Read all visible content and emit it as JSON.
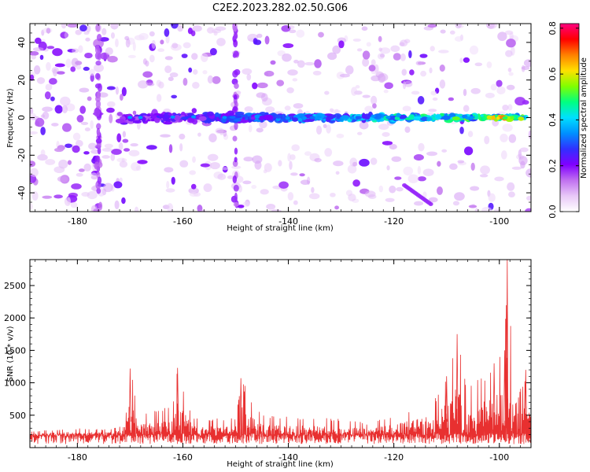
{
  "title": "C2E2.2023.282.02.50.G06",
  "chart_data": [
    {
      "type": "heatmap",
      "xlabel": "Height of straight line (km)",
      "ylabel": "Frequency (Hz)",
      "xlim": [
        -189,
        -94
      ],
      "ylim": [
        -50,
        50
      ],
      "x_ticks": [
        -180,
        -160,
        -140,
        -120,
        -100
      ],
      "y_ticks": [
        -40,
        -20,
        0,
        20,
        40
      ],
      "colorbar": {
        "label": "Normalized spectral amplitude",
        "range": [
          0,
          0.82
        ],
        "ticks": [
          0.0,
          0.2,
          0.4,
          0.6,
          0.8
        ],
        "tick_labels": [
          "0.0",
          "0.2",
          "0.4",
          "0.6",
          "0.8"
        ],
        "colormap": [
          "#ffffff",
          "#e8c8f8",
          "#c070f0",
          "#8000ff",
          "#3030ff",
          "#0090ff",
          "#00e0ff",
          "#00ff80",
          "#80ff00",
          "#ffe000",
          "#ff8000",
          "#ff0000",
          "#ff0080"
        ]
      },
      "description_signal": {
        "center_frequency_hz": 0,
        "signal_start_km": -172,
        "signal_end_km": -95,
        "peak_amplitude": 0.8,
        "peak_height_km": -100
      }
    },
    {
      "type": "line",
      "xlabel": "Height of straight line (km)",
      "ylabel": "SNR (10 * v/v)",
      "xlim": [
        -189,
        -94
      ],
      "ylim": [
        0,
        2900
      ],
      "x_ticks": [
        -180,
        -160,
        -140,
        -120,
        -100
      ],
      "y_ticks": [
        500,
        1000,
        1500,
        2000,
        2500
      ],
      "color": "#e83030",
      "key_points": [
        {
          "x": -189,
          "y": 250
        },
        {
          "x": -180,
          "y": 300
        },
        {
          "x": -175,
          "y": 280
        },
        {
          "x": -171,
          "y": 340
        },
        {
          "x": -170,
          "y": 1220
        },
        {
          "x": -168,
          "y": 500
        },
        {
          "x": -162,
          "y": 650
        },
        {
          "x": -161,
          "y": 1230
        },
        {
          "x": -158,
          "y": 450
        },
        {
          "x": -150,
          "y": 450
        },
        {
          "x": -149,
          "y": 1070
        },
        {
          "x": -145,
          "y": 500
        },
        {
          "x": -140,
          "y": 480
        },
        {
          "x": -130,
          "y": 450
        },
        {
          "x": -125,
          "y": 380
        },
        {
          "x": -120,
          "y": 500
        },
        {
          "x": -112,
          "y": 800
        },
        {
          "x": -110,
          "y": 1100
        },
        {
          "x": -108,
          "y": 1750
        },
        {
          "x": -106,
          "y": 900
        },
        {
          "x": -101,
          "y": 1300
        },
        {
          "x": -99,
          "y": 1500
        },
        {
          "x": -98.5,
          "y": 2900
        },
        {
          "x": -97,
          "y": 700
        },
        {
          "x": -95,
          "y": 1200
        },
        {
          "x": -94,
          "y": 800
        }
      ],
      "baseline_noise": 180
    }
  ]
}
